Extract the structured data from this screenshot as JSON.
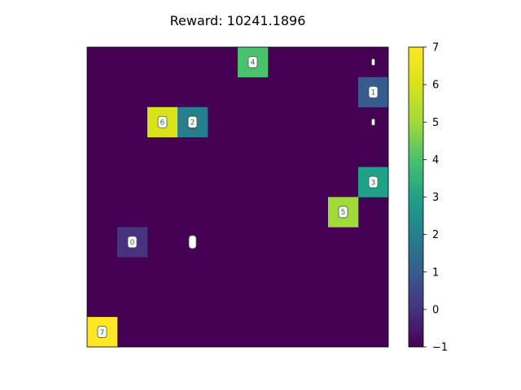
{
  "chart_data": {
    "type": "heatmap",
    "title": "Reward: 10241.1896",
    "grid_size": [
      10,
      10
    ],
    "colormap": "viridis",
    "vmin": -1,
    "vmax": 7,
    "background_value": -1,
    "colorbar_ticks": [
      "7",
      "6",
      "5",
      "4",
      "3",
      "2",
      "1",
      "0",
      "−1"
    ],
    "colorbar_tick_values": [
      7,
      6,
      5,
      4,
      3,
      2,
      1,
      0,
      -1
    ],
    "cells": [
      {
        "row": 0,
        "col": 5,
        "value": 4,
        "label": "4"
      },
      {
        "row": 2,
        "col": 2,
        "value": 6,
        "label": "6"
      },
      {
        "row": 2,
        "col": 3,
        "value": 2,
        "label": "2"
      },
      {
        "row": 1,
        "col": 9,
        "value": 1,
        "label": "1"
      },
      {
        "row": 4,
        "col": 9,
        "value": 3,
        "label": "3"
      },
      {
        "row": 5,
        "col": 8,
        "value": 5,
        "label": "5"
      },
      {
        "row": 6,
        "col": 1,
        "value": 0,
        "label": "0"
      },
      {
        "row": 9,
        "col": 0,
        "value": 7,
        "label": "7"
      }
    ],
    "empty_markers": [
      {
        "row": 0,
        "col": 9,
        "size": "small"
      },
      {
        "row": 2,
        "col": 9,
        "size": "small"
      },
      {
        "row": 6,
        "col": 3,
        "size": "large"
      }
    ]
  }
}
